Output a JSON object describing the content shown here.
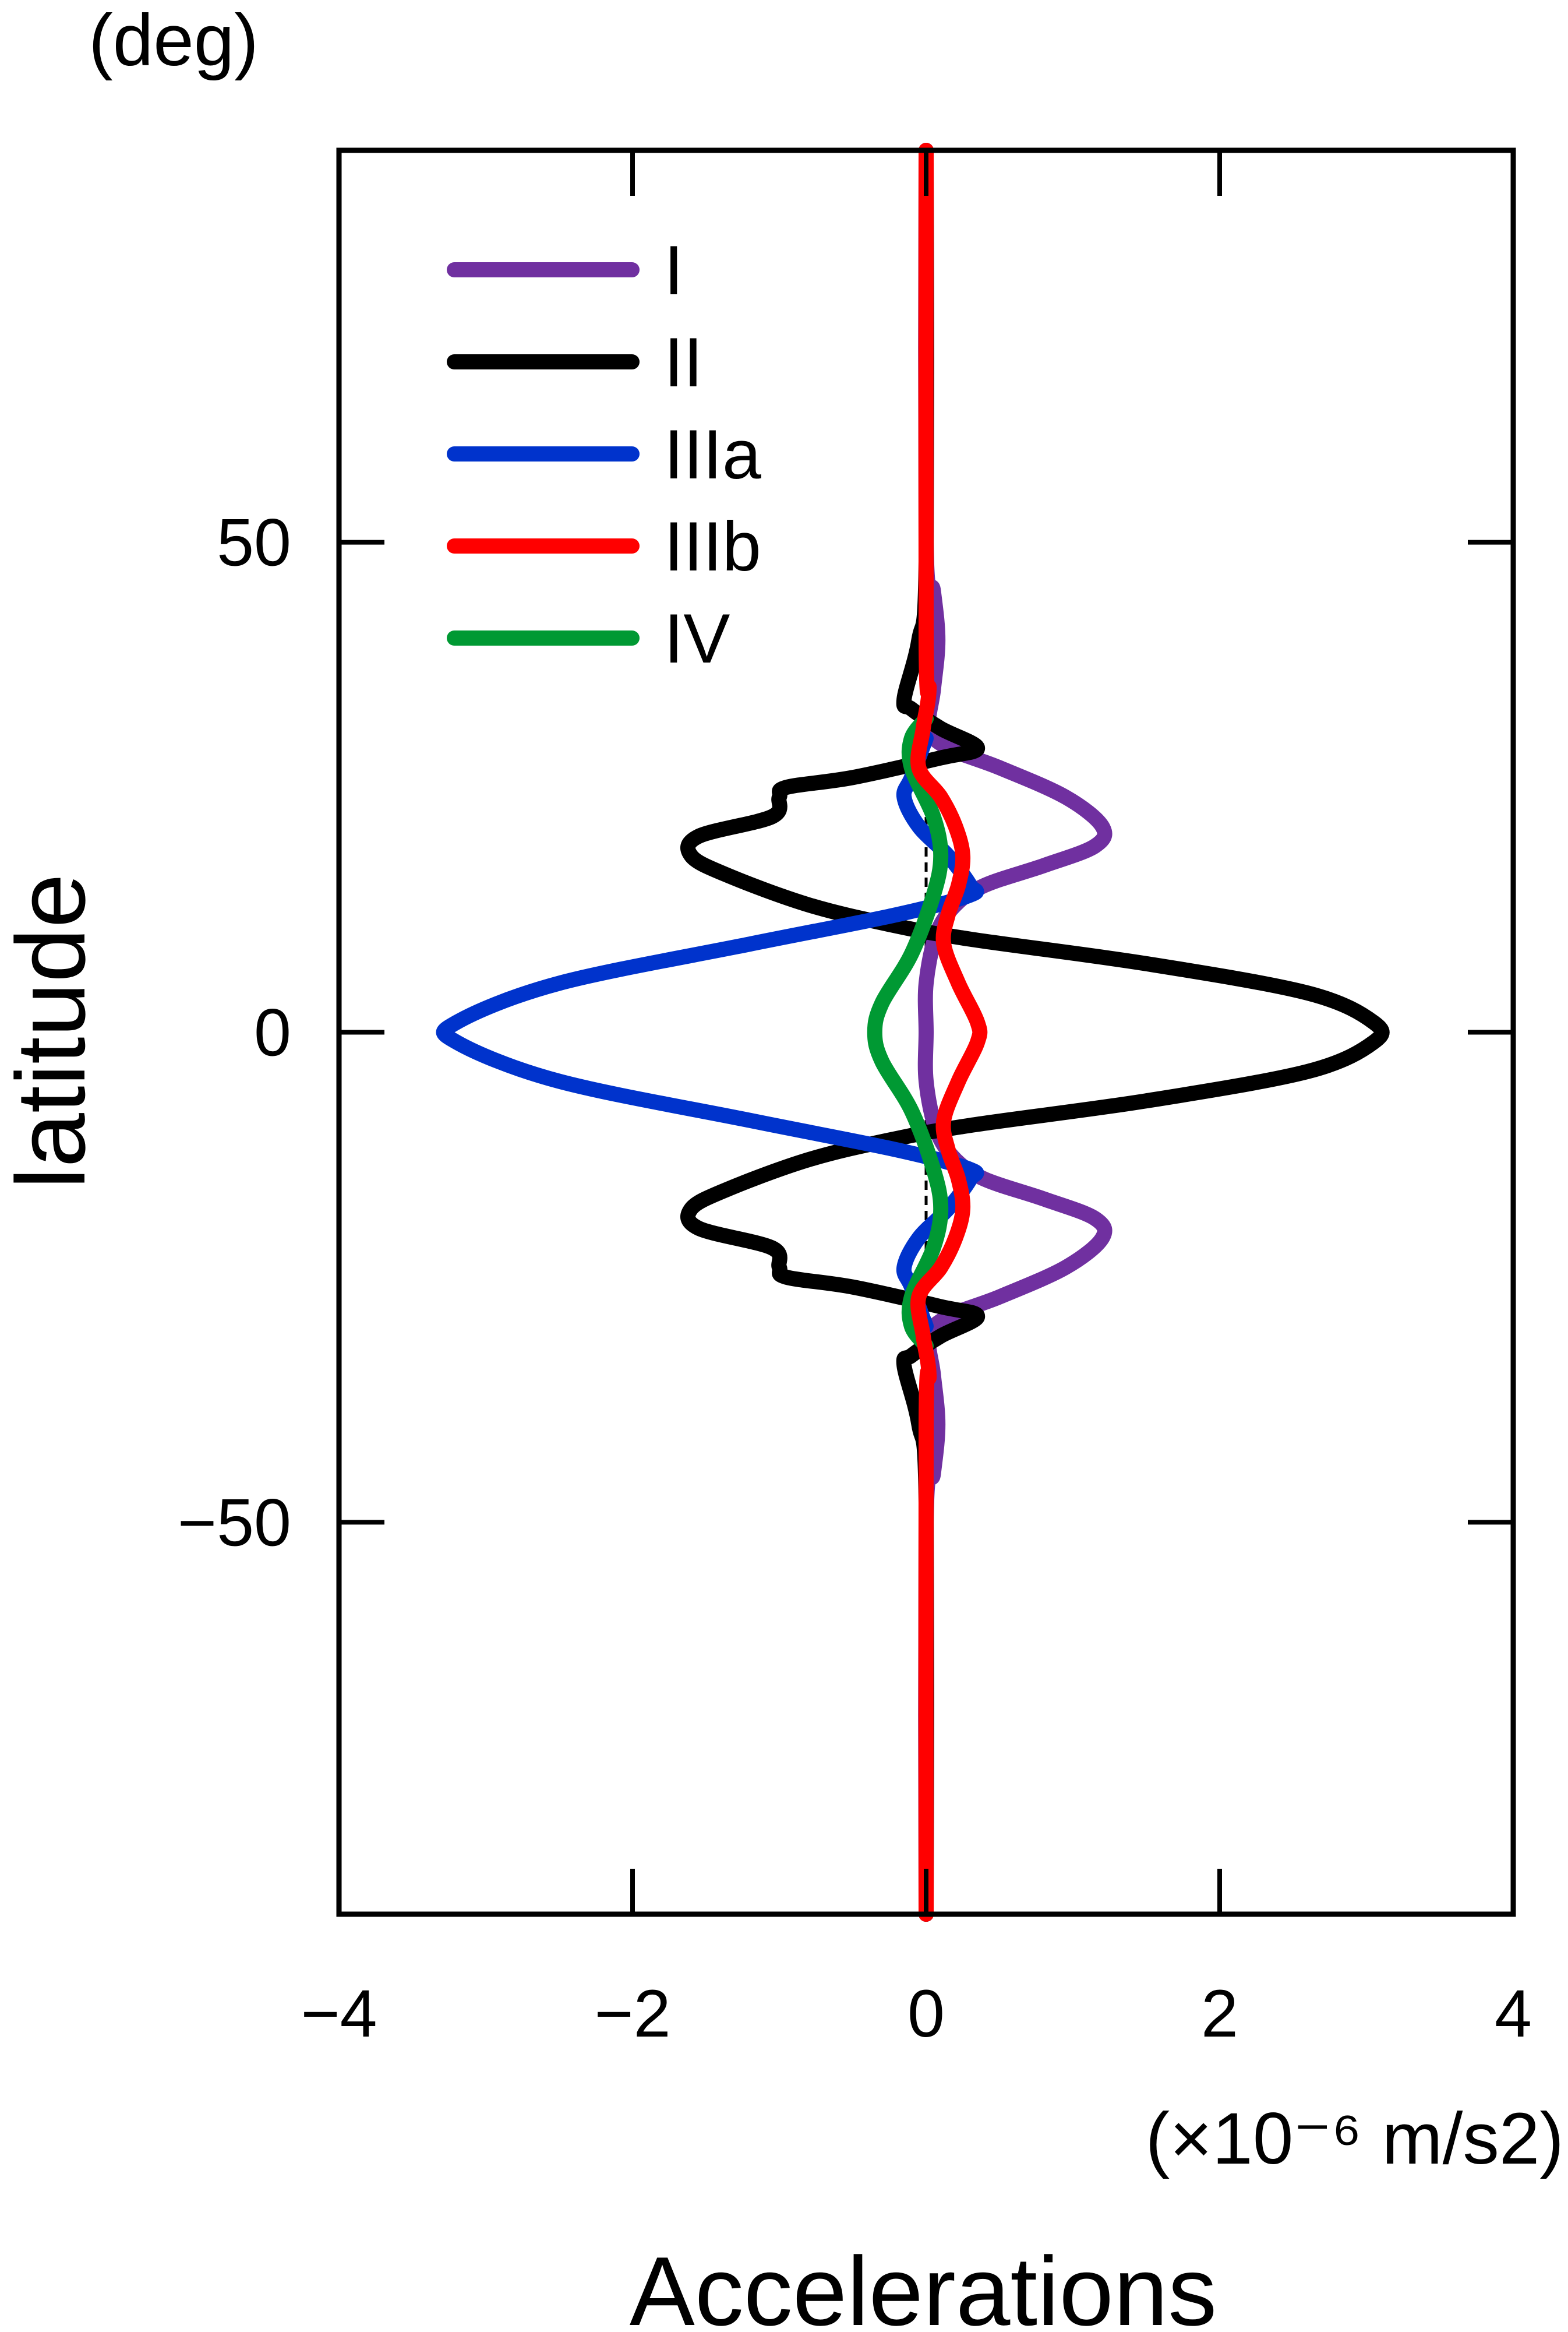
{
  "chart_data": {
    "type": "line",
    "title": "",
    "xlabel": "Accelerations",
    "x_unit": "(×10⁻⁶ m/s2)",
    "ylabel": "latitude",
    "y_unit": "(deg)",
    "xlim": [
      -4,
      4
    ],
    "ylim": [
      -90,
      90
    ],
    "x_ticks": [
      -4,
      -2,
      0,
      2,
      4
    ],
    "y_ticks": [
      -50,
      0,
      50
    ],
    "x_tick_labels": [
      "−4",
      "−2",
      "0",
      "2",
      "4"
    ],
    "y_tick_labels": [
      "−50",
      "0",
      "50"
    ],
    "grid": false,
    "legend_position": "top-left",
    "zero_reference_line": {
      "x": 0,
      "y_range": [
        -30,
        30
      ],
      "style": "dashed"
    },
    "series": [
      {
        "name": "I",
        "color": "#7030a0",
        "points": [
          [
            0,
            -90
          ],
          [
            0,
            -50
          ],
          [
            0.05,
            -45
          ],
          [
            0.08,
            -40
          ],
          [
            0.05,
            -35
          ],
          [
            0.02,
            -31
          ],
          [
            0.15,
            -29
          ],
          [
            0.5,
            -27
          ],
          [
            0.95,
            -24
          ],
          [
            1.2,
            -21
          ],
          [
            1.15,
            -19
          ],
          [
            0.8,
            -17
          ],
          [
            0.4,
            -15
          ],
          [
            0.2,
            -13
          ],
          [
            0.07,
            -10
          ],
          [
            0,
            -5
          ],
          [
            0,
            0
          ],
          [
            0,
            5
          ],
          [
            0.07,
            10
          ],
          [
            0.2,
            13
          ],
          [
            0.4,
            15
          ],
          [
            0.8,
            17
          ],
          [
            1.15,
            19
          ],
          [
            1.2,
            21
          ],
          [
            0.95,
            24
          ],
          [
            0.5,
            27
          ],
          [
            0.15,
            29
          ],
          [
            0.02,
            31
          ],
          [
            0.05,
            35
          ],
          [
            0.08,
            40
          ],
          [
            0.05,
            45
          ],
          [
            0,
            50
          ],
          [
            0,
            90
          ]
        ]
      },
      {
        "name": "II",
        "color": "#000000",
        "points": [
          [
            0,
            -90
          ],
          [
            0,
            -48
          ],
          [
            -0.05,
            -40
          ],
          [
            -0.15,
            -34
          ],
          [
            -0.1,
            -33
          ],
          [
            0.1,
            -31
          ],
          [
            0.35,
            -29
          ],
          [
            0.1,
            -28
          ],
          [
            -0.5,
            -26
          ],
          [
            -0.95,
            -25
          ],
          [
            -1.0,
            -24
          ],
          [
            -1.05,
            -22
          ],
          [
            -1.55,
            -20
          ],
          [
            -1.6,
            -18
          ],
          [
            -1.35,
            -16
          ],
          [
            -0.8,
            -13
          ],
          [
            -0.25,
            -11
          ],
          [
            0.3,
            -9.5
          ],
          [
            1.5,
            -7
          ],
          [
            2.6,
            -4
          ],
          [
            3.05,
            -1
          ],
          [
            3.05,
            1
          ],
          [
            2.6,
            4
          ],
          [
            1.5,
            7
          ],
          [
            0.3,
            9.5
          ],
          [
            -0.25,
            11
          ],
          [
            -0.8,
            13
          ],
          [
            -1.35,
            16
          ],
          [
            -1.6,
            18
          ],
          [
            -1.55,
            20
          ],
          [
            -1.05,
            22
          ],
          [
            -1.0,
            24
          ],
          [
            -0.95,
            25
          ],
          [
            -0.5,
            26
          ],
          [
            0.1,
            28
          ],
          [
            0.35,
            29
          ],
          [
            0.1,
            31
          ],
          [
            -0.1,
            33
          ],
          [
            -0.15,
            34
          ],
          [
            -0.05,
            40
          ],
          [
            0,
            48
          ],
          [
            0,
            90
          ]
        ]
      },
      {
        "name": "IIIa",
        "color": "#0033cc",
        "points": [
          [
            0,
            -30
          ],
          [
            -0.1,
            -26
          ],
          [
            -0.15,
            -24
          ],
          [
            -0.05,
            -21
          ],
          [
            0.15,
            -18
          ],
          [
            0.3,
            -15
          ],
          [
            0.3,
            -14
          ],
          [
            -0.2,
            -12
          ],
          [
            -1.2,
            -9
          ],
          [
            -2.5,
            -5
          ],
          [
            -3.2,
            -1
          ],
          [
            -3.2,
            1
          ],
          [
            -2.5,
            5
          ],
          [
            -1.2,
            9
          ],
          [
            -0.2,
            12
          ],
          [
            0.3,
            14
          ],
          [
            0.3,
            15
          ],
          [
            0.15,
            18
          ],
          [
            -0.05,
            21
          ],
          [
            -0.15,
            24
          ],
          [
            -0.1,
            26
          ],
          [
            0,
            30
          ]
        ]
      },
      {
        "name": "IIIb",
        "color": "#ff0000",
        "points": [
          [
            0,
            -90
          ],
          [
            0,
            -40
          ],
          [
            0.02,
            -35
          ],
          [
            -0.02,
            -31
          ],
          [
            -0.05,
            -27
          ],
          [
            0.1,
            -24
          ],
          [
            0.2,
            -21
          ],
          [
            0.25,
            -18
          ],
          [
            0.22,
            -15
          ],
          [
            0.15,
            -12
          ],
          [
            0.12,
            -9
          ],
          [
            0.22,
            -5
          ],
          [
            0.35,
            -1
          ],
          [
            0.35,
            1
          ],
          [
            0.22,
            5
          ],
          [
            0.12,
            9
          ],
          [
            0.15,
            12
          ],
          [
            0.22,
            15
          ],
          [
            0.25,
            18
          ],
          [
            0.2,
            21
          ],
          [
            0.1,
            24
          ],
          [
            -0.05,
            27
          ],
          [
            -0.02,
            31
          ],
          [
            0.02,
            35
          ],
          [
            0,
            40
          ],
          [
            0,
            90
          ]
        ]
      },
      {
        "name": "IV",
        "color": "#009933",
        "points": [
          [
            0,
            -32
          ],
          [
            -0.1,
            -30
          ],
          [
            -0.1,
            -27
          ],
          [
            0.05,
            -22
          ],
          [
            0.1,
            -18
          ],
          [
            0.05,
            -14
          ],
          [
            -0.1,
            -8
          ],
          [
            -0.3,
            -3
          ],
          [
            -0.35,
            0
          ],
          [
            -0.3,
            3
          ],
          [
            -0.1,
            8
          ],
          [
            0.05,
            14
          ],
          [
            0.1,
            18
          ],
          [
            0.05,
            22
          ],
          [
            -0.1,
            27
          ],
          [
            -0.1,
            30
          ],
          [
            0,
            32
          ]
        ]
      }
    ]
  }
}
